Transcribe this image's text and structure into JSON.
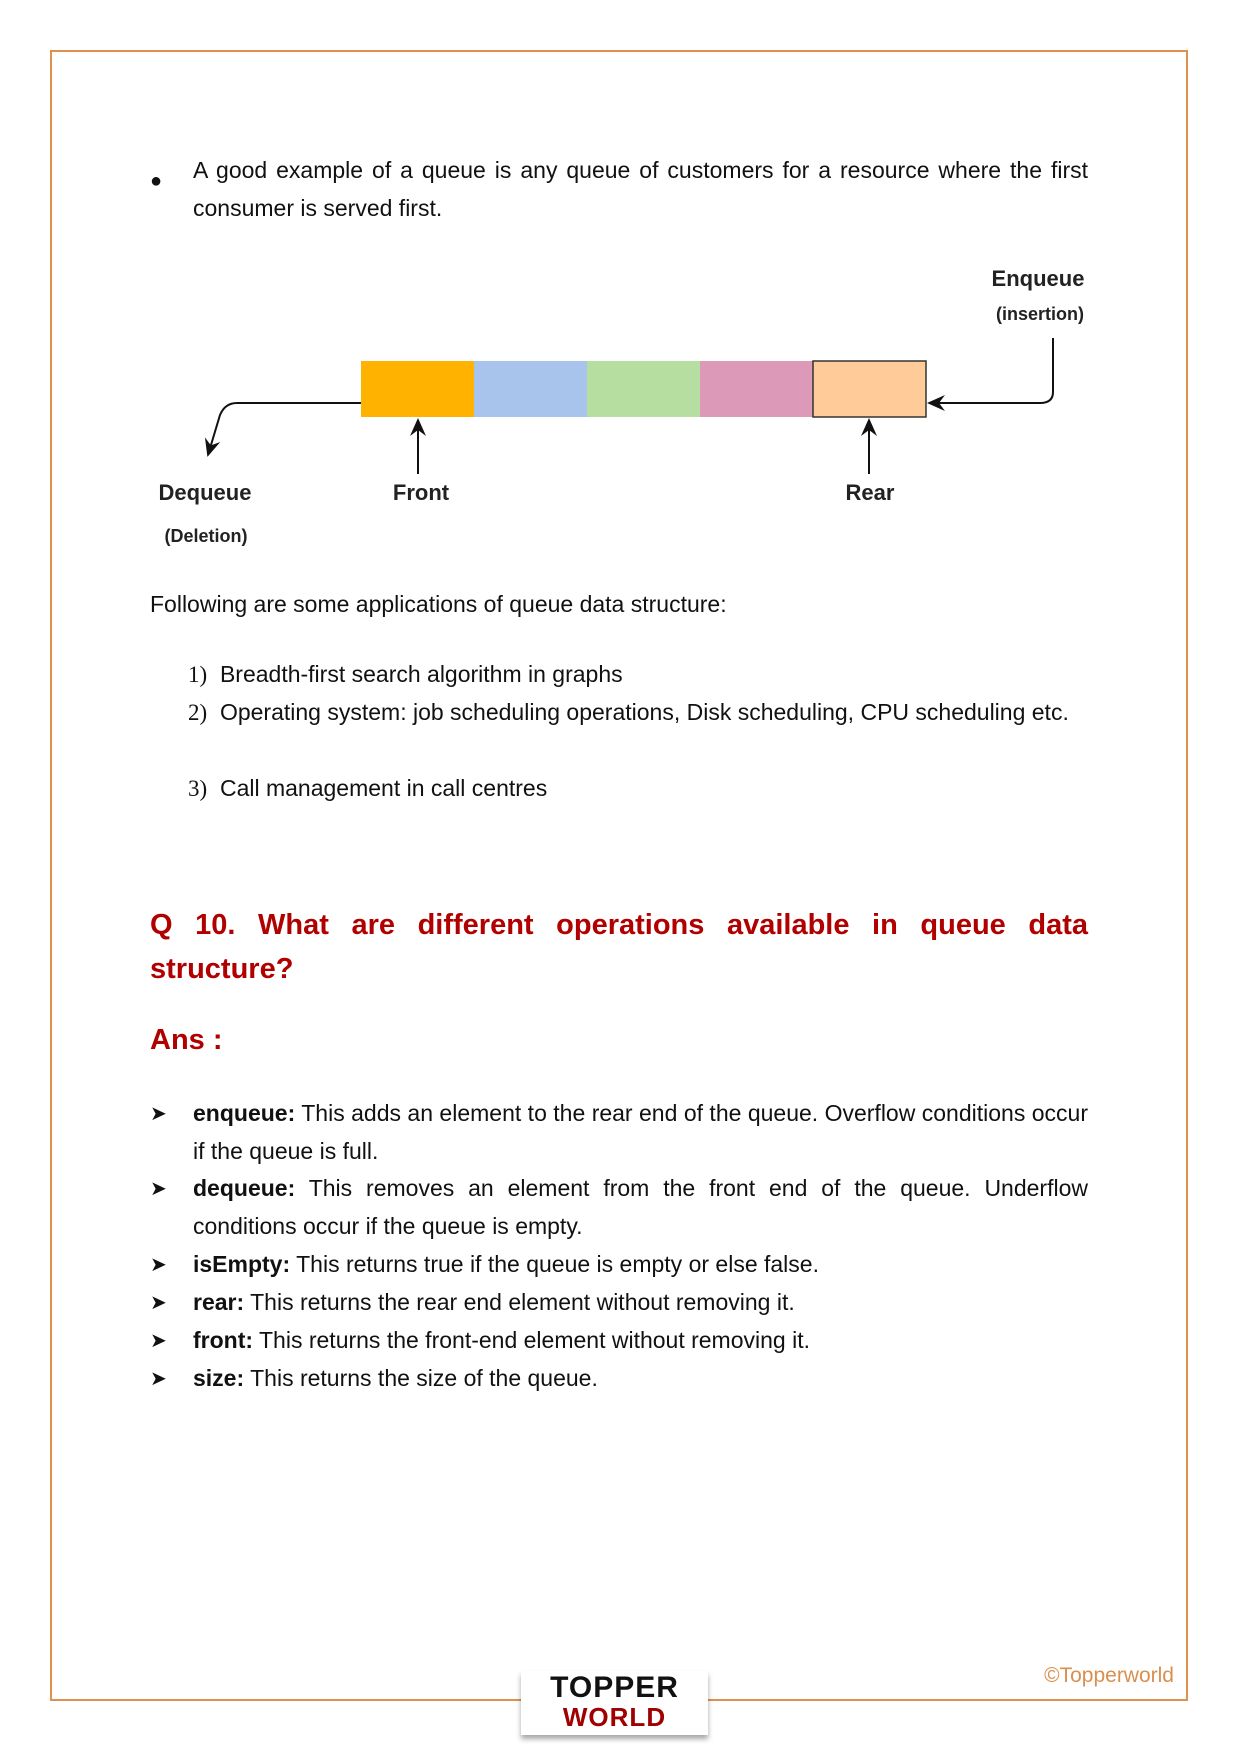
{
  "intro_bullet": "A good example of a queue is any queue of customers for a resource where the first consumer is served first.",
  "diagram": {
    "cells": [
      "#ffb300",
      "#a8c4ec",
      "#b5dea0",
      "#dc9ab8",
      "#ffcc99"
    ],
    "enqueue": "Enqueue",
    "enqueue_sub": "(insertion)",
    "dequeue": "Dequeue",
    "dequeue_sub": "(Deletion)",
    "front": "Front",
    "rear": "Rear"
  },
  "applications_intro": "Following are some applications of queue data structure:",
  "applications": [
    {
      "num": "1)",
      "text": "Breadth-first search algorithm in graphs"
    },
    {
      "num": "2)",
      "text": "Operating system: job scheduling operations, Disk scheduling, CPU scheduling etc."
    },
    {
      "num": "3)",
      "text": "Call management in call centres"
    }
  ],
  "question": "Q 10. What are different operations available in queue data structure?",
  "answer_label": "Ans :",
  "operations": [
    {
      "term": "enqueue:",
      "text": " This adds an element to the rear end of the queue.  Overflow conditions occur if the queue is full."
    },
    {
      "term": "dequeue:",
      "text": " This removes an element from the front end of the queue. Underflow conditions occur if the queue is empty."
    },
    {
      "term": "isEmpty:",
      "text": " This returns true if the queue is empty or else false."
    },
    {
      "term": "rear:",
      "text": " This returns the rear end element without removing it."
    },
    {
      "term": "front:",
      "text": " This returns the front-end element without removing it."
    },
    {
      "term": "size:",
      "text": " This returns the size of the queue."
    }
  ],
  "footer": {
    "logo_top": "TOPPER",
    "logo_bottom": "WORLD",
    "copyright": "©Topperworld"
  },
  "colors": {
    "border": "#e0914f",
    "heading": "#b00000"
  }
}
